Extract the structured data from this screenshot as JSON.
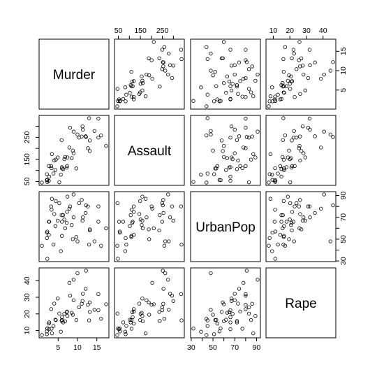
{
  "chart_data": {
    "type": "scatter",
    "layout": "scatterplot-matrix",
    "grid": false,
    "variables": [
      {
        "name": "Murder",
        "range": [
          0.8,
          17.4
        ],
        "ticks": [
          5,
          10,
          15
        ]
      },
      {
        "name": "Assault",
        "range": [
          45,
          337
        ],
        "ticks": [
          50,
          150,
          250
        ]
      },
      {
        "name": "UrbanPop",
        "range": [
          32,
          91
        ],
        "ticks": [
          30,
          50,
          70,
          90
        ]
      },
      {
        "name": "Rape",
        "range": [
          7.3,
          46.0
        ],
        "ticks": [
          10,
          20,
          30,
          40
        ]
      }
    ],
    "tick_labels": {
      "Murder": [
        "5",
        "10",
        "15"
      ],
      "Assault": [
        "50",
        "150",
        "250"
      ],
      "UrbanPop": [
        "30",
        "50",
        "70",
        "90"
      ],
      "Rape": [
        "10",
        "20",
        "30",
        "40"
      ]
    },
    "axis_tick_marks": {
      "Murder": [
        5,
        10,
        15
      ],
      "Assault": [
        50,
        100,
        150,
        200,
        250,
        300
      ],
      "UrbanPop": [
        30,
        40,
        50,
        60,
        70,
        80,
        90
      ],
      "Rape": [
        10,
        20,
        30,
        40
      ]
    },
    "columns": [
      "Murder",
      "Assault",
      "UrbanPop",
      "Rape"
    ],
    "rows": [
      [
        13.2,
        236,
        58,
        21.2
      ],
      [
        10.0,
        263,
        48,
        44.5
      ],
      [
        8.1,
        294,
        80,
        31.0
      ],
      [
        8.8,
        190,
        50,
        19.5
      ],
      [
        9.0,
        276,
        91,
        40.6
      ],
      [
        7.9,
        204,
        78,
        38.7
      ],
      [
        3.3,
        110,
        77,
        11.1
      ],
      [
        5.9,
        238,
        72,
        15.8
      ],
      [
        15.4,
        335,
        80,
        31.9
      ],
      [
        17.4,
        211,
        60,
        25.8
      ],
      [
        5.3,
        46,
        83,
        20.2
      ],
      [
        2.6,
        120,
        54,
        14.2
      ],
      [
        10.4,
        249,
        83,
        24.0
      ],
      [
        7.2,
        113,
        65,
        21.0
      ],
      [
        2.2,
        56,
        57,
        11.3
      ],
      [
        6.0,
        115,
        66,
        18.0
      ],
      [
        9.7,
        109,
        52,
        16.3
      ],
      [
        15.4,
        249,
        66,
        22.2
      ],
      [
        2.1,
        83,
        51,
        7.8
      ],
      [
        11.3,
        300,
        67,
        27.8
      ],
      [
        4.4,
        149,
        85,
        16.3
      ],
      [
        12.1,
        255,
        74,
        35.1
      ],
      [
        2.7,
        72,
        66,
        14.9
      ],
      [
        16.1,
        259,
        44,
        17.1
      ],
      [
        9.0,
        178,
        70,
        28.2
      ],
      [
        6.0,
        109,
        53,
        16.4
      ],
      [
        4.3,
        102,
        62,
        16.5
      ],
      [
        12.2,
        252,
        81,
        46.0
      ],
      [
        2.1,
        57,
        56,
        9.5
      ],
      [
        7.4,
        159,
        89,
        18.8
      ],
      [
        11.4,
        285,
        70,
        32.1
      ],
      [
        11.1,
        254,
        86,
        26.1
      ],
      [
        13.0,
        337,
        45,
        16.1
      ],
      [
        0.8,
        45,
        44,
        7.3
      ],
      [
        7.3,
        120,
        75,
        21.4
      ],
      [
        6.6,
        151,
        68,
        20.0
      ],
      [
        4.9,
        159,
        67,
        29.3
      ],
      [
        6.3,
        106,
        72,
        14.9
      ],
      [
        3.4,
        174,
        87,
        8.3
      ],
      [
        14.4,
        279,
        48,
        22.5
      ],
      [
        3.8,
        86,
        45,
        12.8
      ],
      [
        13.2,
        188,
        59,
        26.9
      ],
      [
        12.7,
        201,
        80,
        25.5
      ],
      [
        3.2,
        120,
        80,
        22.9
      ],
      [
        2.2,
        48,
        32,
        11.2
      ],
      [
        8.5,
        156,
        63,
        20.7
      ],
      [
        4.0,
        145,
        73,
        26.2
      ],
      [
        5.7,
        81,
        39,
        9.3
      ],
      [
        2.6,
        53,
        66,
        10.8
      ],
      [
        6.8,
        161,
        60,
        15.6
      ]
    ]
  }
}
